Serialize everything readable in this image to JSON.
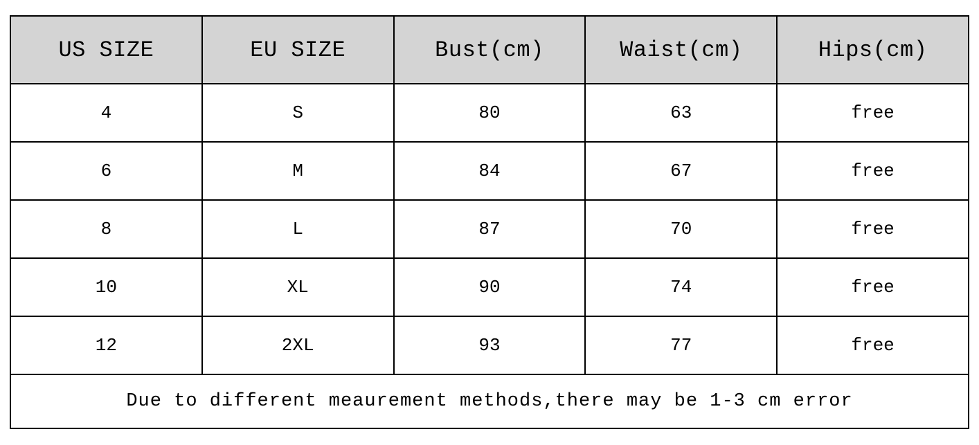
{
  "table": {
    "type": "table",
    "columns": [
      "US SIZE",
      "EU SIZE",
      "Bust(cm)",
      "Waist(cm)",
      "Hips(cm)"
    ],
    "rows": [
      [
        "4",
        "S",
        "80",
        "63",
        "free"
      ],
      [
        "6",
        "M",
        "84",
        "67",
        "free"
      ],
      [
        "8",
        "L",
        "87",
        "70",
        "free"
      ],
      [
        "10",
        "XL",
        "90",
        "74",
        "free"
      ],
      [
        "12",
        "2XL",
        "93",
        "77",
        "free"
      ]
    ],
    "footer_note": "Due to different meaurement methods,there may be 1-3 cm error",
    "header_background_color": "#d4d4d4",
    "cell_background_color": "#ffffff",
    "border_color": "#000000",
    "text_color": "#000000",
    "header_fontsize": 32,
    "cell_fontsize": 26,
    "footer_fontsize": 27,
    "font_family": "Courier New, monospace",
    "header_row_height": 98,
    "data_row_height": 84,
    "footer_row_height": 78,
    "border_width": 2,
    "column_count": 5
  }
}
